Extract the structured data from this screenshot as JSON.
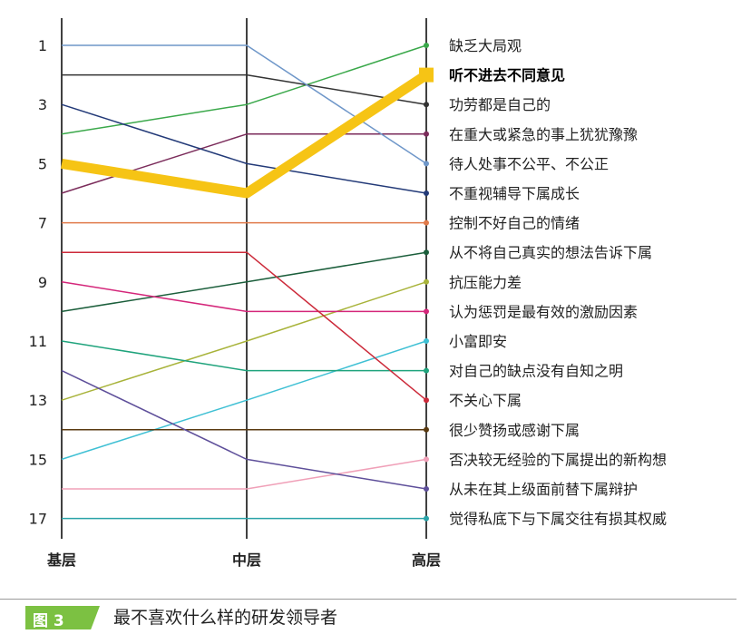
{
  "chart_data": {
    "type": "line",
    "categories": [
      "基层",
      "中层",
      "高层"
    ],
    "ylim": [
      17,
      1
    ],
    "yticks": [
      1,
      3,
      5,
      7,
      9,
      11,
      13,
      15,
      17
    ],
    "highlight_series": "听不进去不同意见",
    "series": [
      {
        "name": "缺乏大局观",
        "values": [
          4,
          3,
          1
        ],
        "color": "#3aa84a"
      },
      {
        "name": "听不进去不同意见",
        "values": [
          5,
          6,
          2
        ],
        "color": "#f6c415"
      },
      {
        "name": "功劳都是自己的",
        "values": [
          2,
          2,
          3
        ],
        "color": "#333333"
      },
      {
        "name": "在重大或紧急的事上犹犹豫豫",
        "values": [
          6,
          4,
          4
        ],
        "color": "#7b2c5b"
      },
      {
        "name": "待人处事不公平、不公正",
        "values": [
          1,
          1,
          5
        ],
        "color": "#6f97c9"
      },
      {
        "name": "不重视辅导下属成长",
        "values": [
          3,
          5,
          6
        ],
        "color": "#233a78"
      },
      {
        "name": "控制不好自己的情绪",
        "values": [
          7,
          7,
          7
        ],
        "color": "#e07a4a"
      },
      {
        "name": "从不将自己真实的想法告诉下属",
        "values": [
          10,
          9,
          8
        ],
        "color": "#1b5e3b"
      },
      {
        "name": "抗压能力差",
        "values": [
          13,
          11,
          9
        ],
        "color": "#a8b33a"
      },
      {
        "name": "认为惩罚是最有效的激励因素",
        "values": [
          9,
          10,
          10
        ],
        "color": "#d4267a"
      },
      {
        "name": "小富即安",
        "values": [
          15,
          13,
          11
        ],
        "color": "#3fc0d4"
      },
      {
        "name": "对自己的缺点没有自知之明",
        "values": [
          11,
          12,
          12
        ],
        "color": "#1fa37c"
      },
      {
        "name": "不关心下属",
        "values": [
          8,
          8,
          13
        ],
        "color": "#cc2a3a"
      },
      {
        "name": "很少赞扬或感谢下属",
        "values": [
          14,
          14,
          14
        ],
        "color": "#5a3a10"
      },
      {
        "name": "否决较无经验的下属提出的新构想",
        "values": [
          16,
          16,
          15
        ],
        "color": "#f0a0b8"
      },
      {
        "name": "从未在其上级面前替下属辩护",
        "values": [
          12,
          15,
          16
        ],
        "color": "#5e4f9a"
      },
      {
        "name": "觉得私底下与下属交往有损其权威",
        "values": [
          17,
          17,
          17
        ],
        "color": "#2aa3a8"
      }
    ]
  },
  "caption": {
    "tag": "图 3",
    "text": "最不喜欢什么样的研发领导者"
  }
}
